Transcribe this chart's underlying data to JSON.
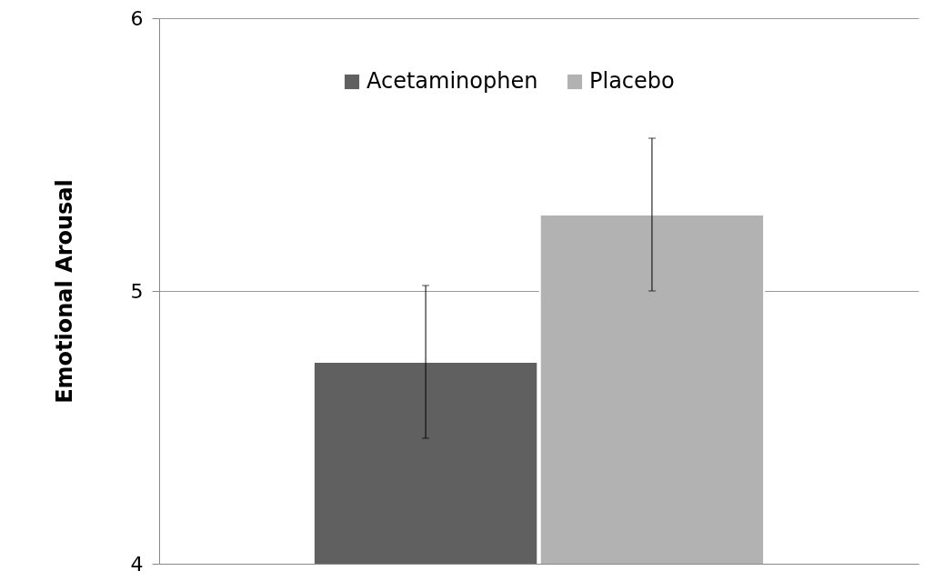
{
  "chart_data": {
    "type": "bar",
    "ylabel": "Emotional Arousal",
    "categories": [
      null
    ],
    "series": [
      {
        "name": "Acetaminophen",
        "color": "#606060",
        "values": [
          4.74
        ],
        "errors": [
          0.28
        ]
      },
      {
        "name": "Placebo",
        "color": "#b2b2b2",
        "values": [
          5.28
        ],
        "errors": [
          0.28
        ]
      }
    ],
    "ylim": [
      4,
      6
    ],
    "yticks": [
      4,
      5,
      6
    ],
    "grid": "y",
    "legend": "top",
    "tick_labels": "y"
  }
}
